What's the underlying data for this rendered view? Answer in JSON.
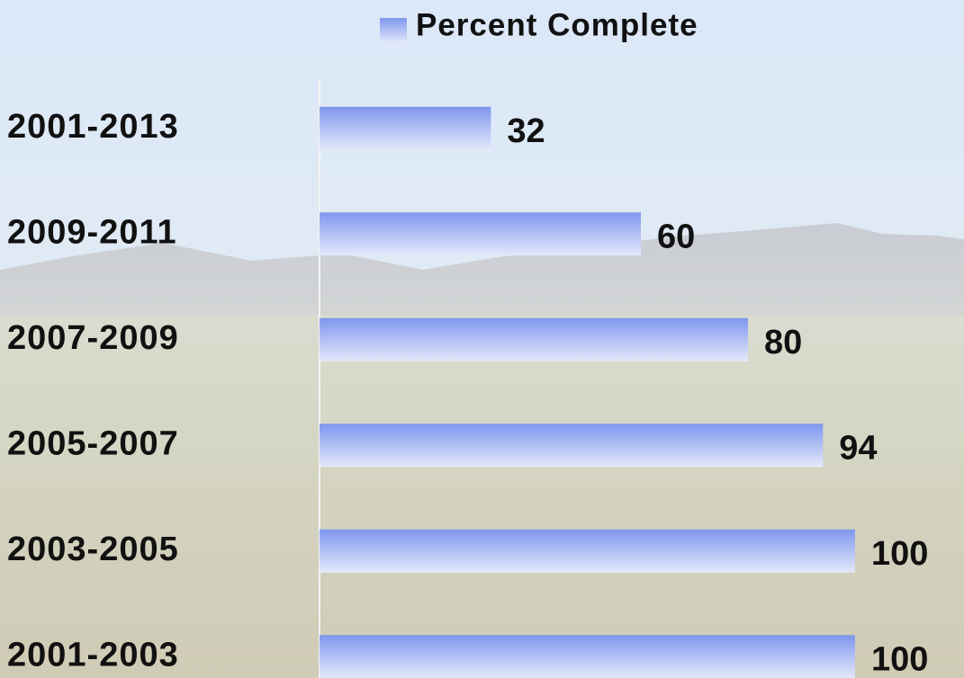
{
  "chart_data": {
    "type": "bar",
    "orientation": "horizontal",
    "categories": [
      "2001-2013",
      "2009-2011",
      "2007-2009",
      "2005-2007",
      "2003-2005",
      "2001-2003"
    ],
    "series": [
      {
        "name": "Percent Complete",
        "color": "#7f97ee",
        "values": [
          32,
          60,
          80,
          94,
          100,
          100
        ]
      }
    ],
    "xlim": [
      0,
      100
    ]
  }
}
